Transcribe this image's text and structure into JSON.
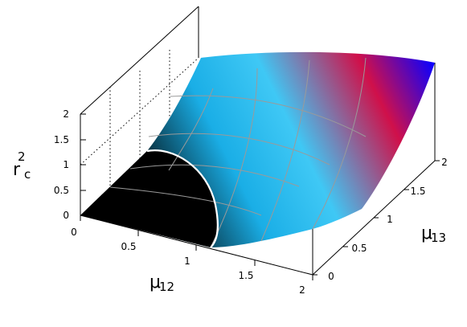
{
  "chart_data": {
    "type": "surface3d",
    "title": "",
    "xlabel": {
      "main": "μ",
      "sub": "12"
    },
    "ylabel": {
      "main": "μ",
      "sub": "13"
    },
    "zlabel": {
      "main": "r",
      "sup": "2",
      "sub": "c"
    },
    "x_ticks": [
      "0",
      "0.5",
      "1",
      "1.5",
      "2"
    ],
    "y_ticks": [
      "0",
      "0.5",
      "1",
      "1.5",
      "2"
    ],
    "z_ticks": [
      "0",
      "0.5",
      "1",
      "1.5",
      "2"
    ],
    "xlim": [
      0,
      2
    ],
    "ylim": [
      0,
      2
    ],
    "zlim": [
      0,
      2
    ],
    "grid": true,
    "colormap": [
      "#000000",
      "#1aaee6",
      "#3fc8f5",
      "#d0104a",
      "#0a00ff"
    ],
    "boundary_color": "#ffffff",
    "grid_line_color": "#9a9a9a",
    "surface_samples": {
      "x": [
        0,
        0.5,
        1,
        1.5,
        2
      ],
      "y": [
        0,
        0.5,
        1,
        1.5,
        2
      ],
      "z": [
        [
          0,
          0,
          0,
          0,
          0
        ],
        [
          0,
          0,
          0,
          0.3,
          1.0
        ],
        [
          0,
          0,
          0.3,
          1.0,
          1.7
        ],
        [
          0.2,
          0.5,
          1.2,
          1.6,
          2.0
        ],
        [
          0.9,
          1.2,
          1.6,
          1.9,
          2.2
        ]
      ]
    }
  }
}
